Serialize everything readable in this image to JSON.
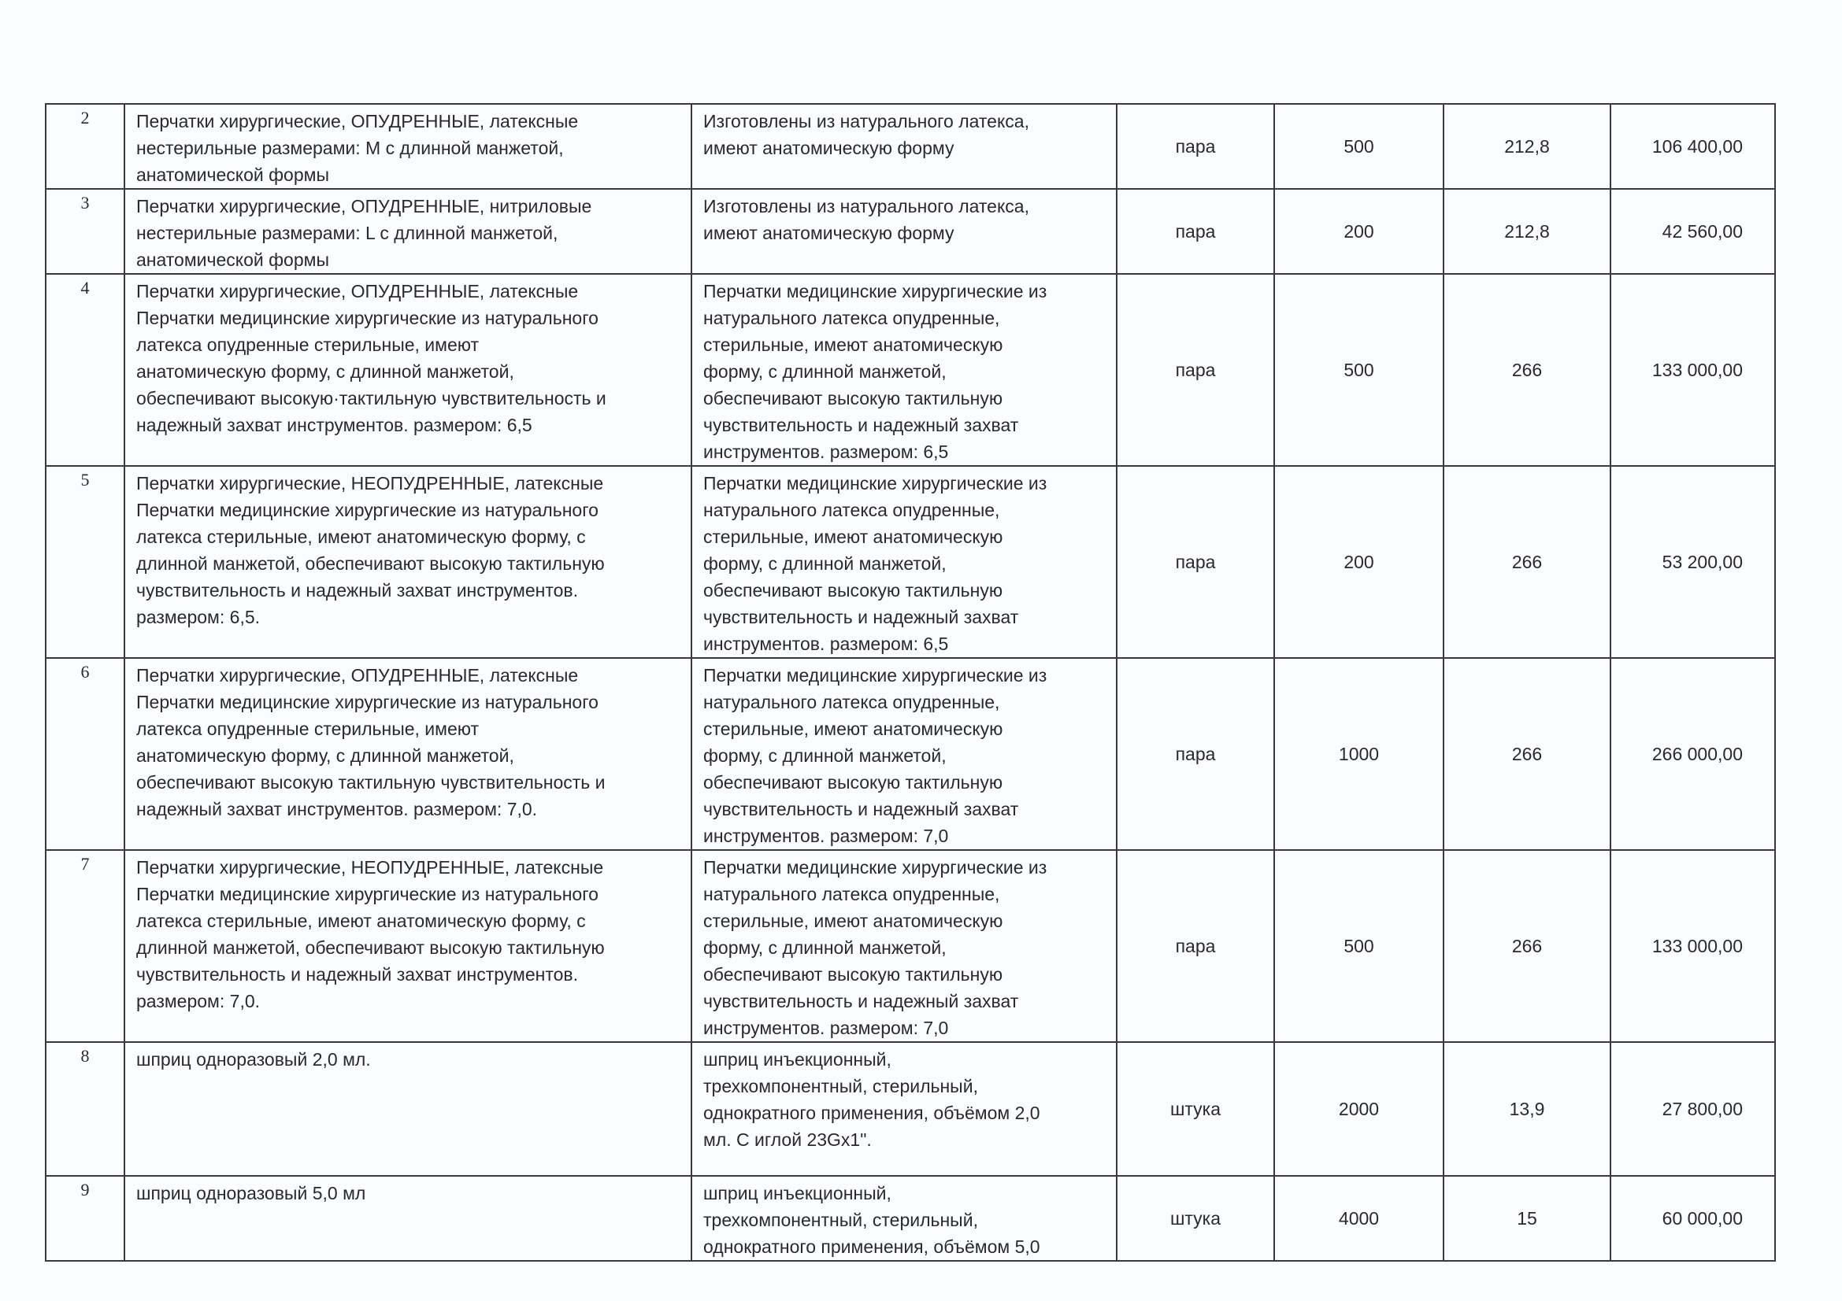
{
  "rows": [
    {
      "no": "2",
      "name": "Перчатки хирургические, ОПУДРЕННЫЕ,  латексные\nнестерильные  размерами: М с длинной манжетой,\nанатомической формы",
      "spec": "Изготовлены из натурального латекса,\nимеют анатомическую форму",
      "unit": "пара",
      "qty": "500",
      "price": "212,8",
      "sum": "106 400,00"
    },
    {
      "no": "3",
      "name": "Перчатки хирургические, ОПУДРЕННЫЕ,  нитриловые\nнестерильные  размерами:  L  с длинной манжетой,\nанатомической формы",
      "spec": "Изготовлены из натурального латекса,\nимеют анатомическую форму",
      "unit": "пара",
      "qty": "200",
      "price": "212,8",
      "sum": "42 560,00"
    },
    {
      "no": "4",
      "name": "Перчатки хирургические, ОПУДРЕННЫЕ,  латексные\nПерчатки медицинские хирургические из натурального\nлатекса  опудренные  стерильные,  имеют\nанатомическую форму, с длинной манжетой,\nобеспечивают высокую·тактильную чувствительность и\nнадежный захват инструментов. размером: 6,5",
      "spec": "Перчатки медицинские хирургические из\nнатурального латекса  опудренные,\nстерильные,  имеют анатомическую\nформу, с длинной манжетой,\nобеспечивают высокую тактильную\nчувствительность и надежный захват\nинструментов. размером: 6,5",
      "unit": "пара",
      "qty": "500",
      "price": "266",
      "sum": "133 000,00"
    },
    {
      "no": "5",
      "name": "Перчатки хирургические, НЕОПУДРЕННЫЕ,  латексные\nПерчатки медицинские хирургические из натурального\nлатекса    стерильные,  имеют анатомическую форму, с\nдлинной манжетой, обеспечивают высокую тактильную\nчувствительность и надежный захват инструментов.\nразмером: 6,5.",
      "spec": "Перчатки медицинские хирургические из\nнатурального латекса  опудренные,\nстерильные,  имеют анатомическую\nформу, с длинной манжетой,\nобеспечивают высокую тактильную\nчувствительность и надежный захват\nинструментов. размером: 6,5",
      "unit": "пара",
      "qty": "200",
      "price": "266",
      "sum": "53 200,00"
    },
    {
      "no": "6",
      "name": "Перчатки хирургические, ОПУДРЕННЫЕ,  латексные\nПерчатки медицинские хирургические из натурального\nлатекса  опудренные  стерильные,  имеют\nанатомическую форму, с длинной манжетой,\nобеспечивают высокую тактильную чувствительность и\nнадежный захват инструментов. размером: 7,0.",
      "spec": "Перчатки медицинские хирургические из\nнатурального латекса  опудренные,\nстерильные,  имеют анатомическую\nформу, с длинной манжетой,\nобеспечивают высокую тактильную\nчувствительность и надежный захват\nинструментов. размером: 7,0",
      "unit": "пара",
      "qty": "1000",
      "price": "266",
      "sum": "266 000,00"
    },
    {
      "no": "7",
      "name": "Перчатки хирургические, НЕОПУДРЕННЫЕ,  латексные\nПерчатки медицинские хирургические из натурального\nлатекса    стерильные,  имеют анатомическую форму, с\nдлинной манжетой, обеспечивают высокую тактильную\nчувствительность и надежный захват инструментов.\nразмером: 7,0.",
      "spec": "Перчатки медицинские хирургические из\nнатурального латекса  опудренные,\nстерильные,  имеют анатомическую\nформу, с длинной манжетой,\nобеспечивают высокую тактильную\nчувствительность и надежный захват\nинструментов. размером: 7,0",
      "unit": "пара",
      "qty": "500",
      "price": "266",
      "sum": "133 000,00"
    },
    {
      "no": "8",
      "name": "шприц одноразовый 2,0 мл.",
      "spec": "шприц инъекционный,\nтрехкомпонентный, стерильный,\nоднократного применения, объёмом 2,0\nмл. С иглой 23Gx1\".",
      "unit": "штука",
      "qty": "2000",
      "price": "13,9",
      "sum": "27 800,00"
    },
    {
      "no": "9",
      "name": "шприц одноразовый 5,0 мл",
      "spec": "шприц инъекционный,\nтрехкомпонентный, стерильный,\nоднократного применения, объёмом 5,0",
      "unit": "штука",
      "qty": "4000",
      "price": "15",
      "sum": "60 000,00"
    }
  ]
}
